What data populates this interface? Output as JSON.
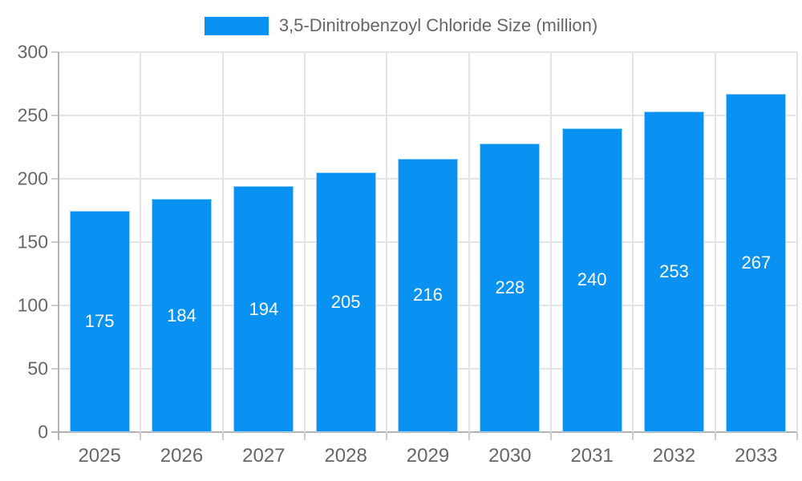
{
  "chart_data": {
    "type": "bar",
    "title": "",
    "legend": {
      "label": "3,5-Dinitrobenzoyl Chloride Size (million)",
      "position": "top"
    },
    "categories": [
      "2025",
      "2026",
      "2027",
      "2028",
      "2029",
      "2030",
      "2031",
      "2032",
      "2033"
    ],
    "series": [
      {
        "name": "3,5-Dinitrobenzoyl Chloride Size (million)",
        "values": [
          175,
          184,
          194,
          205,
          216,
          228,
          240,
          253,
          267
        ]
      }
    ],
    "xlabel": "",
    "ylabel": "",
    "ylim": [
      0,
      300
    ],
    "ytick_step": 50,
    "ytick_labels": [
      "0",
      "50",
      "100",
      "150",
      "200",
      "250",
      "300"
    ],
    "grid": true,
    "bar_value_labels_shown": true,
    "colors": {
      "bar": "#0992f2",
      "bar_edge": "#9ed5f7",
      "axis": "#b3b3b3",
      "gridline": "#e4e4e4",
      "tick": "#cccccc",
      "label_text": "#666666",
      "bar_label_text": "#ffffff"
    }
  }
}
